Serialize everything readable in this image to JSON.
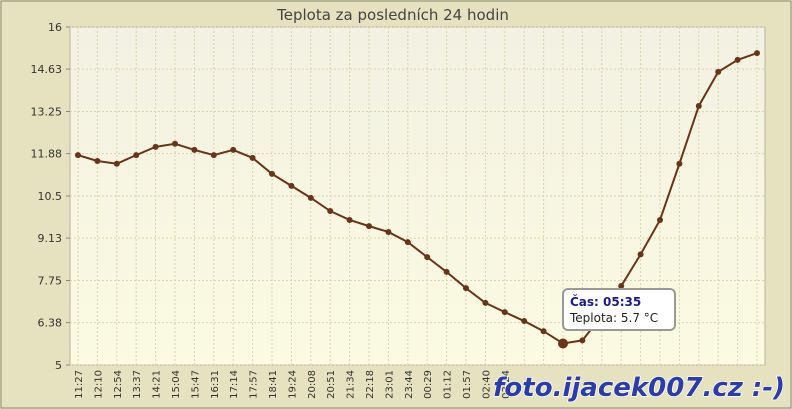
{
  "chart_data": {
    "type": "line",
    "title": "Teplota za posledních 24 hodin",
    "categories": [
      "11:27",
      "12:10",
      "12:54",
      "13:37",
      "14:21",
      "15:04",
      "15:47",
      "16:31",
      "17:14",
      "17:57",
      "18:41",
      "19:24",
      "20:08",
      "20:51",
      "21:34",
      "22:18",
      "23:01",
      "23:44",
      "00:29",
      "01:12",
      "01:57",
      "02:40",
      "03:24",
      null,
      null,
      null,
      null,
      null,
      null,
      null,
      null,
      null,
      null,
      null,
      null,
      null
    ],
    "series": [
      {
        "name": "Teplota",
        "color": "#6b3416",
        "values": [
          11.83,
          11.64,
          11.55,
          11.83,
          12.1,
          12.2,
          12.0,
          11.83,
          12.0,
          11.74,
          11.22,
          10.83,
          10.44,
          10.01,
          9.72,
          9.52,
          9.33,
          9.0,
          8.51,
          8.03,
          7.5,
          7.02,
          6.72,
          6.43,
          6.1,
          5.7,
          5.8,
          6.6,
          7.57,
          8.6,
          9.72,
          11.55,
          13.43,
          14.54,
          14.93,
          15.15
        ]
      }
    ],
    "ylim": [
      5,
      16
    ],
    "yticks": [
      5,
      6.38,
      7.75,
      9.13,
      10.5,
      11.88,
      13.25,
      14.63,
      16
    ],
    "grid": true,
    "tooltip": {
      "title": "Čas: 05:35",
      "text": "Teplota: 5.7 °C"
    },
    "watermark": "foto.ijacek007.cz :-)"
  }
}
